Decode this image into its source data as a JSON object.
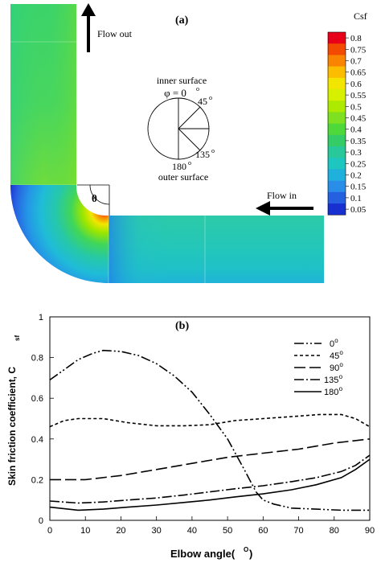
{
  "panel_a": {
    "label": "(a)",
    "flow_out": "Flow out",
    "flow_in": "Flow in",
    "theta": "θ",
    "inner_surface": "inner surface",
    "outer_surface": "outer surface",
    "phi_label": "φ = 0",
    "phi_sup": "o",
    "angles": [
      {
        "base": "45",
        "sup": "o"
      },
      {
        "base": "135",
        "sup": "o"
      },
      {
        "base": "180",
        "sup": "o"
      }
    ],
    "colorbar": {
      "title": "Csf",
      "ticks": [
        "0.8",
        "0.75",
        "0.7",
        "0.65",
        "0.6",
        "0.55",
        "0.5",
        "0.45",
        "0.4",
        "0.35",
        "0.3",
        "0.25",
        "0.2",
        "0.15",
        "0.1",
        "0.05"
      ],
      "colors": [
        "#e8001a",
        "#f24a00",
        "#f88400",
        "#fcbc00",
        "#f2e600",
        "#d6f000",
        "#aeea00",
        "#7ee020",
        "#4fd83a",
        "#33cc66",
        "#28c89a",
        "#1ec6c0",
        "#1fb0dc",
        "#2a8ee8",
        "#2460e0",
        "#1830d0"
      ]
    }
  },
  "panel_b": {
    "label": "(b)",
    "xlabel": "Elbow angle(",
    "xlabel_sup": "O",
    "xlabel_end": ")",
    "ylabel": "Skin friction coefficient, C",
    "ylabel_sub": "sf"
  },
  "chart_data": {
    "type": "line",
    "xlabel": "Elbow angle(O)",
    "ylabel": "Skin friction coefficient, Csf",
    "xlim": [
      0,
      90
    ],
    "ylim": [
      0,
      1
    ],
    "xticks": [
      0,
      10,
      20,
      30,
      40,
      50,
      60,
      70,
      80,
      90
    ],
    "yticks": [
      0,
      0.2,
      0.4,
      0.6,
      0.8,
      1
    ],
    "yticklabels": [
      "0",
      "0.2",
      "0.4",
      "0.6",
      "0.8",
      "1"
    ],
    "legend_position": "top-right",
    "series": [
      {
        "name": "0",
        "sup": "o",
        "dash": "12,3,2,3,2,3",
        "x": [
          0,
          4,
          8,
          12,
          15,
          20,
          25,
          30,
          35,
          40,
          45,
          50,
          55,
          58,
          60,
          63,
          68,
          75,
          82,
          90
        ],
        "y": [
          0.69,
          0.74,
          0.79,
          0.82,
          0.835,
          0.83,
          0.81,
          0.77,
          0.71,
          0.63,
          0.52,
          0.4,
          0.24,
          0.14,
          0.1,
          0.08,
          0.06,
          0.055,
          0.05,
          0.05
        ]
      },
      {
        "name": "45",
        "sup": "o",
        "dash": "4,3",
        "x": [
          0,
          4,
          8,
          15,
          22,
          30,
          38,
          45,
          52,
          60,
          68,
          76,
          82,
          86,
          90
        ],
        "y": [
          0.46,
          0.49,
          0.5,
          0.5,
          0.48,
          0.465,
          0.465,
          0.47,
          0.49,
          0.5,
          0.51,
          0.52,
          0.52,
          0.5,
          0.46
        ]
      },
      {
        "name": "90",
        "sup": "o",
        "dash": "14,5",
        "x": [
          0,
          10,
          20,
          30,
          40,
          50,
          60,
          70,
          80,
          90
        ],
        "y": [
          0.2,
          0.2,
          0.22,
          0.25,
          0.28,
          0.31,
          0.33,
          0.35,
          0.38,
          0.4
        ]
      },
      {
        "name": "135",
        "sup": "o",
        "dash": "12,3,2,3",
        "x": [
          0,
          8,
          15,
          22,
          30,
          38,
          45,
          52,
          60,
          68,
          75,
          82,
          86,
          90
        ],
        "y": [
          0.095,
          0.085,
          0.09,
          0.1,
          0.11,
          0.125,
          0.14,
          0.155,
          0.17,
          0.19,
          0.21,
          0.24,
          0.27,
          0.32
        ]
      },
      {
        "name": "180",
        "sup": "o",
        "dash": "",
        "x": [
          0,
          8,
          15,
          22,
          30,
          38,
          45,
          52,
          60,
          68,
          75,
          82,
          86,
          90
        ],
        "y": [
          0.065,
          0.05,
          0.055,
          0.065,
          0.075,
          0.088,
          0.1,
          0.115,
          0.13,
          0.15,
          0.175,
          0.21,
          0.25,
          0.3
        ]
      }
    ]
  }
}
